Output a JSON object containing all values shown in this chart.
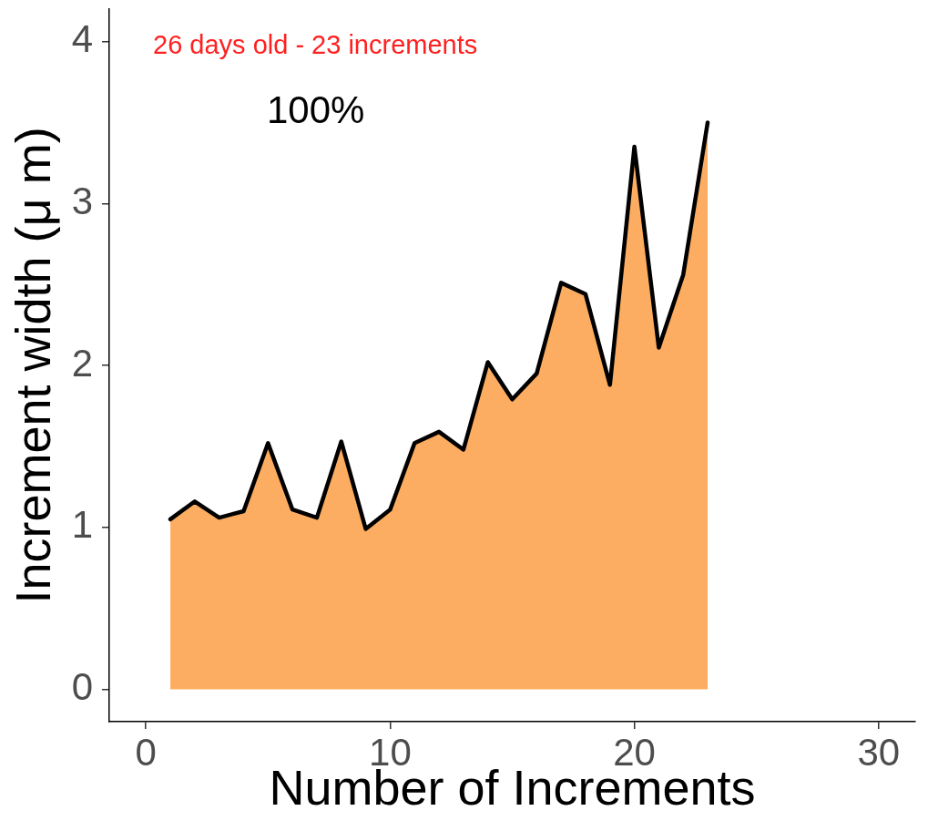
{
  "chart_data": {
    "type": "area",
    "x": [
      1,
      2,
      3,
      4,
      5,
      6,
      7,
      8,
      9,
      10,
      11,
      12,
      13,
      14,
      15,
      16,
      17,
      18,
      19,
      20,
      21,
      22,
      23
    ],
    "series": [
      {
        "color": "#fcad62",
        "values": [
          1.05,
          1.16,
          1.06,
          1.1,
          1.52,
          1.11,
          1.06,
          1.53,
          0.99,
          1.11,
          1.52,
          1.59,
          1.48,
          2.02,
          1.79,
          1.95,
          2.51,
          2.44,
          1.88,
          3.35,
          2.11,
          2.56,
          3.5
        ]
      }
    ],
    "xlabel": "Number of Increments",
    "ylabel": "Increment width (μ m)",
    "xlim": [
      -1.5,
      31.5
    ],
    "xticks": [
      0,
      10,
      20,
      30
    ],
    "ylim": [
      -0.2,
      4.2
    ],
    "yticks": [
      0,
      1,
      2,
      3,
      4
    ],
    "annotations": [
      "26 days old - 23 increments",
      "100%"
    ]
  }
}
